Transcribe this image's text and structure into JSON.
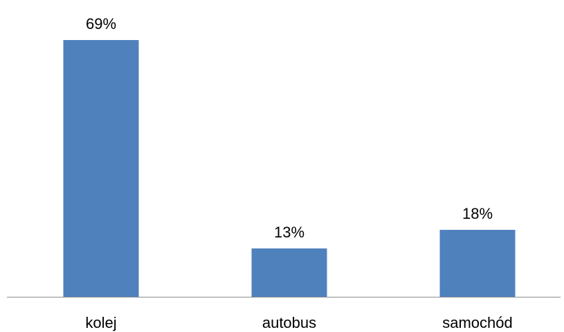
{
  "chart_data": {
    "type": "bar",
    "categories": [
      "kolej",
      "autobus",
      "samochód"
    ],
    "values": [
      69,
      13,
      18
    ],
    "data_labels": [
      "69%",
      "13%",
      "18%"
    ],
    "ylim": [
      0,
      75
    ],
    "grid": false,
    "legend": "none",
    "colors": {
      "bar": "#4F81BD",
      "axis": "#8C8C8C",
      "text": "#000000"
    }
  }
}
